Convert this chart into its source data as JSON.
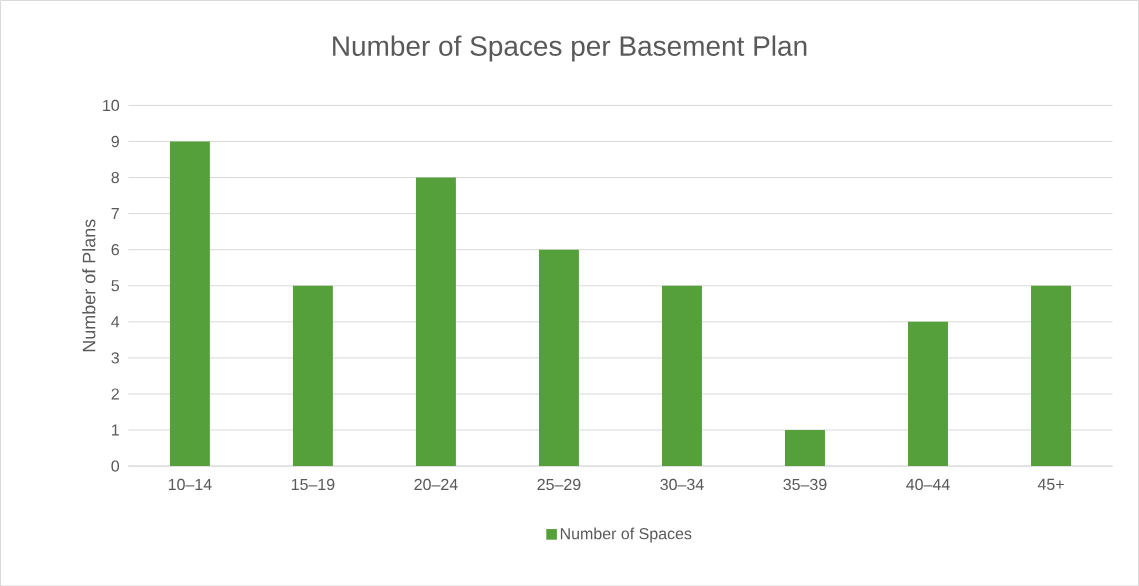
{
  "chart_data": {
    "type": "bar",
    "title": "Number of Spaces per Basement Plan",
    "ylabel": "Number of Plans",
    "categories": [
      "10–14",
      "15–19",
      "20–24",
      "25–29",
      "30–34",
      "35–39",
      "40–44",
      "45+"
    ],
    "series": [
      {
        "name": "Number of Spaces",
        "color": "#56a03c",
        "values": [
          9,
          5,
          8,
          6,
          5,
          1,
          4,
          5
        ]
      }
    ],
    "ylim": [
      0,
      10
    ],
    "yticks": [
      0,
      1,
      2,
      3,
      4,
      5,
      6,
      7,
      8,
      9,
      10
    ],
    "grid": "y",
    "legend": "bottom"
  }
}
